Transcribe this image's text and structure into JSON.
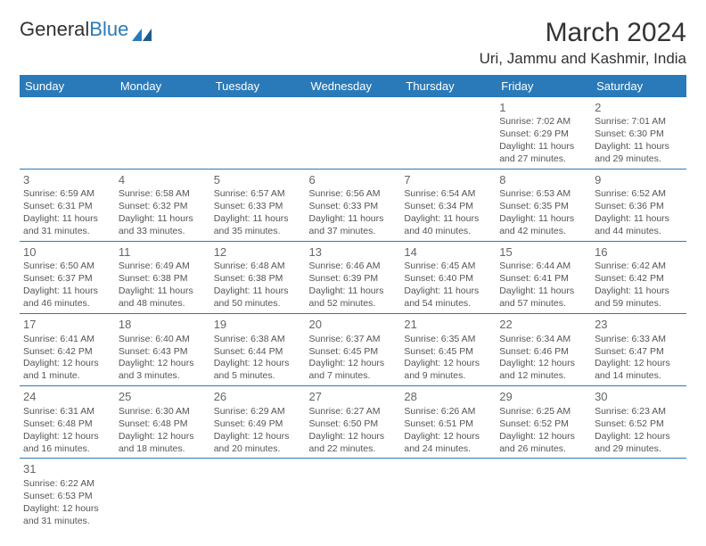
{
  "logo": {
    "text1": "General",
    "text2": "Blue"
  },
  "title": "March 2024",
  "location": "Uri, Jammu and Kashmir, India",
  "colors": {
    "header_bg": "#2a7ab9",
    "header_fg": "#ffffff",
    "text": "#555555",
    "border": "#2a7ab9"
  },
  "dow": [
    "Sunday",
    "Monday",
    "Tuesday",
    "Wednesday",
    "Thursday",
    "Friday",
    "Saturday"
  ],
  "grid": [
    [
      null,
      null,
      null,
      null,
      null,
      {
        "d": "1",
        "sr": "Sunrise: 7:02 AM",
        "ss": "Sunset: 6:29 PM",
        "dl1": "Daylight: 11 hours",
        "dl2": "and 27 minutes."
      },
      {
        "d": "2",
        "sr": "Sunrise: 7:01 AM",
        "ss": "Sunset: 6:30 PM",
        "dl1": "Daylight: 11 hours",
        "dl2": "and 29 minutes."
      }
    ],
    [
      {
        "d": "3",
        "sr": "Sunrise: 6:59 AM",
        "ss": "Sunset: 6:31 PM",
        "dl1": "Daylight: 11 hours",
        "dl2": "and 31 minutes."
      },
      {
        "d": "4",
        "sr": "Sunrise: 6:58 AM",
        "ss": "Sunset: 6:32 PM",
        "dl1": "Daylight: 11 hours",
        "dl2": "and 33 minutes."
      },
      {
        "d": "5",
        "sr": "Sunrise: 6:57 AM",
        "ss": "Sunset: 6:33 PM",
        "dl1": "Daylight: 11 hours",
        "dl2": "and 35 minutes."
      },
      {
        "d": "6",
        "sr": "Sunrise: 6:56 AM",
        "ss": "Sunset: 6:33 PM",
        "dl1": "Daylight: 11 hours",
        "dl2": "and 37 minutes."
      },
      {
        "d": "7",
        "sr": "Sunrise: 6:54 AM",
        "ss": "Sunset: 6:34 PM",
        "dl1": "Daylight: 11 hours",
        "dl2": "and 40 minutes."
      },
      {
        "d": "8",
        "sr": "Sunrise: 6:53 AM",
        "ss": "Sunset: 6:35 PM",
        "dl1": "Daylight: 11 hours",
        "dl2": "and 42 minutes."
      },
      {
        "d": "9",
        "sr": "Sunrise: 6:52 AM",
        "ss": "Sunset: 6:36 PM",
        "dl1": "Daylight: 11 hours",
        "dl2": "and 44 minutes."
      }
    ],
    [
      {
        "d": "10",
        "sr": "Sunrise: 6:50 AM",
        "ss": "Sunset: 6:37 PM",
        "dl1": "Daylight: 11 hours",
        "dl2": "and 46 minutes."
      },
      {
        "d": "11",
        "sr": "Sunrise: 6:49 AM",
        "ss": "Sunset: 6:38 PM",
        "dl1": "Daylight: 11 hours",
        "dl2": "and 48 minutes."
      },
      {
        "d": "12",
        "sr": "Sunrise: 6:48 AM",
        "ss": "Sunset: 6:38 PM",
        "dl1": "Daylight: 11 hours",
        "dl2": "and 50 minutes."
      },
      {
        "d": "13",
        "sr": "Sunrise: 6:46 AM",
        "ss": "Sunset: 6:39 PM",
        "dl1": "Daylight: 11 hours",
        "dl2": "and 52 minutes."
      },
      {
        "d": "14",
        "sr": "Sunrise: 6:45 AM",
        "ss": "Sunset: 6:40 PM",
        "dl1": "Daylight: 11 hours",
        "dl2": "and 54 minutes."
      },
      {
        "d": "15",
        "sr": "Sunrise: 6:44 AM",
        "ss": "Sunset: 6:41 PM",
        "dl1": "Daylight: 11 hours",
        "dl2": "and 57 minutes."
      },
      {
        "d": "16",
        "sr": "Sunrise: 6:42 AM",
        "ss": "Sunset: 6:42 PM",
        "dl1": "Daylight: 11 hours",
        "dl2": "and 59 minutes."
      }
    ],
    [
      {
        "d": "17",
        "sr": "Sunrise: 6:41 AM",
        "ss": "Sunset: 6:42 PM",
        "dl1": "Daylight: 12 hours",
        "dl2": "and 1 minute."
      },
      {
        "d": "18",
        "sr": "Sunrise: 6:40 AM",
        "ss": "Sunset: 6:43 PM",
        "dl1": "Daylight: 12 hours",
        "dl2": "and 3 minutes."
      },
      {
        "d": "19",
        "sr": "Sunrise: 6:38 AM",
        "ss": "Sunset: 6:44 PM",
        "dl1": "Daylight: 12 hours",
        "dl2": "and 5 minutes."
      },
      {
        "d": "20",
        "sr": "Sunrise: 6:37 AM",
        "ss": "Sunset: 6:45 PM",
        "dl1": "Daylight: 12 hours",
        "dl2": "and 7 minutes."
      },
      {
        "d": "21",
        "sr": "Sunrise: 6:35 AM",
        "ss": "Sunset: 6:45 PM",
        "dl1": "Daylight: 12 hours",
        "dl2": "and 9 minutes."
      },
      {
        "d": "22",
        "sr": "Sunrise: 6:34 AM",
        "ss": "Sunset: 6:46 PM",
        "dl1": "Daylight: 12 hours",
        "dl2": "and 12 minutes."
      },
      {
        "d": "23",
        "sr": "Sunrise: 6:33 AM",
        "ss": "Sunset: 6:47 PM",
        "dl1": "Daylight: 12 hours",
        "dl2": "and 14 minutes."
      }
    ],
    [
      {
        "d": "24",
        "sr": "Sunrise: 6:31 AM",
        "ss": "Sunset: 6:48 PM",
        "dl1": "Daylight: 12 hours",
        "dl2": "and 16 minutes."
      },
      {
        "d": "25",
        "sr": "Sunrise: 6:30 AM",
        "ss": "Sunset: 6:48 PM",
        "dl1": "Daylight: 12 hours",
        "dl2": "and 18 minutes."
      },
      {
        "d": "26",
        "sr": "Sunrise: 6:29 AM",
        "ss": "Sunset: 6:49 PM",
        "dl1": "Daylight: 12 hours",
        "dl2": "and 20 minutes."
      },
      {
        "d": "27",
        "sr": "Sunrise: 6:27 AM",
        "ss": "Sunset: 6:50 PM",
        "dl1": "Daylight: 12 hours",
        "dl2": "and 22 minutes."
      },
      {
        "d": "28",
        "sr": "Sunrise: 6:26 AM",
        "ss": "Sunset: 6:51 PM",
        "dl1": "Daylight: 12 hours",
        "dl2": "and 24 minutes."
      },
      {
        "d": "29",
        "sr": "Sunrise: 6:25 AM",
        "ss": "Sunset: 6:52 PM",
        "dl1": "Daylight: 12 hours",
        "dl2": "and 26 minutes."
      },
      {
        "d": "30",
        "sr": "Sunrise: 6:23 AM",
        "ss": "Sunset: 6:52 PM",
        "dl1": "Daylight: 12 hours",
        "dl2": "and 29 minutes."
      }
    ],
    [
      {
        "d": "31",
        "sr": "Sunrise: 6:22 AM",
        "ss": "Sunset: 6:53 PM",
        "dl1": "Daylight: 12 hours",
        "dl2": "and 31 minutes."
      },
      null,
      null,
      null,
      null,
      null,
      null
    ]
  ]
}
